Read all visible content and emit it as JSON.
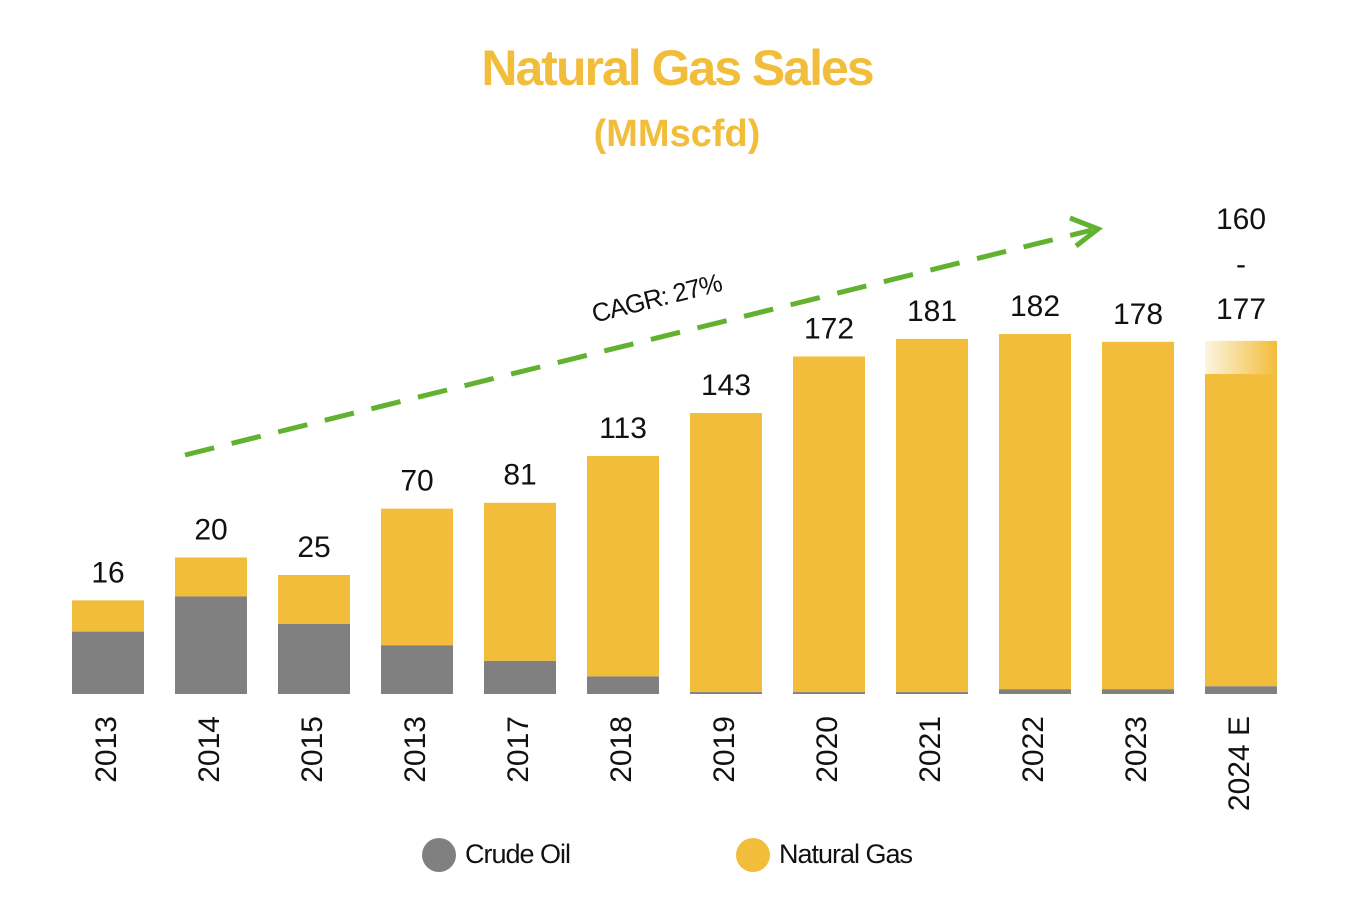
{
  "chart_data": {
    "type": "stacked_bar",
    "title": "Natural Gas Sales",
    "subtitle": "(MMscfd)",
    "annotation": "CAGR: 27%",
    "categories": [
      "2013",
      "2014",
      "2015",
      "2013",
      "2017",
      "2018",
      "2019",
      "2020",
      "2021",
      "2022",
      "2023",
      "2024 E"
    ],
    "series": [
      {
        "name": "Crude Oil",
        "color": "#808080",
        "values": [
          32,
          50,
          36,
          25,
          17,
          9,
          1,
          1,
          1,
          2.5,
          2.5,
          4
        ]
      },
      {
        "name": "Natural Gas",
        "color": "#f2bd3a",
        "values": [
          16,
          20,
          25,
          70,
          81,
          113,
          143,
          172,
          181,
          182,
          178,
          160
        ],
        "upper_values": [
          null,
          null,
          null,
          null,
          null,
          null,
          null,
          null,
          null,
          null,
          null,
          177
        ],
        "range_separator": "-"
      }
    ],
    "label_series": 1,
    "legend": "bottom",
    "grid": false
  }
}
